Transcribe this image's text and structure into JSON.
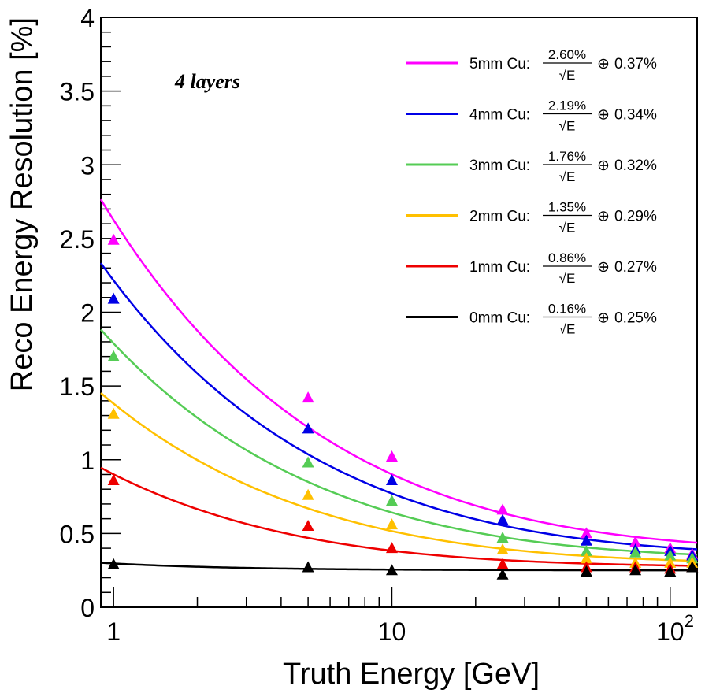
{
  "chart_data": {
    "type": "scatter",
    "title": "",
    "xlabel": "Truth Energy [GeV]",
    "ylabel": "Reco Energy Resolution [%]",
    "xscale": "log",
    "xlim": [
      0.9,
      125
    ],
    "ylim": [
      0,
      4
    ],
    "xticks": [
      "1",
      "10",
      "10"
    ],
    "xtick_exponent": "2",
    "yticks": [
      "0",
      "0.5",
      "1",
      "1.5",
      "2",
      "2.5",
      "3",
      "3.5",
      "4"
    ],
    "annotation": "4 layers",
    "legend_position": "top-right",
    "x": [
      1,
      5,
      10,
      25,
      50,
      75,
      100,
      120
    ],
    "series": [
      {
        "name": "5mm Cu",
        "color": "#ff00ff",
        "stochastic": "2.60%",
        "constant": "0.37%",
        "fit": [
          2.6,
          0.37
        ],
        "values": [
          2.49,
          1.42,
          1.02,
          0.66,
          0.5,
          0.44,
          0.4,
          0.36
        ]
      },
      {
        "name": "4mm Cu",
        "color": "#0000e6",
        "stochastic": "2.19%",
        "constant": "0.34%",
        "fit": [
          2.19,
          0.34
        ],
        "values": [
          2.09,
          1.21,
          0.86,
          0.59,
          0.45,
          0.39,
          0.38,
          0.35
        ]
      },
      {
        "name": "3mm Cu",
        "color": "#55cc55",
        "stochastic": "1.76%",
        "constant": "0.32%",
        "fit": [
          1.76,
          0.32
        ],
        "values": [
          1.7,
          0.98,
          0.72,
          0.47,
          0.38,
          0.37,
          0.35,
          0.33
        ]
      },
      {
        "name": "2mm Cu",
        "color": "#ffc000",
        "stochastic": "1.35%",
        "constant": "0.29%",
        "fit": [
          1.35,
          0.29
        ],
        "values": [
          1.31,
          0.76,
          0.56,
          0.39,
          0.33,
          0.3,
          0.3,
          0.3
        ]
      },
      {
        "name": "1mm Cu",
        "color": "#ee0000",
        "stochastic": "0.86%",
        "constant": "0.27%",
        "fit": [
          0.86,
          0.27
        ],
        "values": [
          0.86,
          0.55,
          0.4,
          0.29,
          0.27,
          0.27,
          0.26,
          0.27
        ]
      },
      {
        "name": "0mm Cu",
        "color": "#000000",
        "stochastic": "0.16%",
        "constant": "0.25%",
        "fit": [
          0.16,
          0.25
        ],
        "values": [
          0.29,
          0.27,
          0.25,
          0.22,
          0.24,
          0.25,
          0.24,
          0.27
        ]
      }
    ],
    "legend_sqrt_label": "√E",
    "legend_oplus": "⊕"
  }
}
